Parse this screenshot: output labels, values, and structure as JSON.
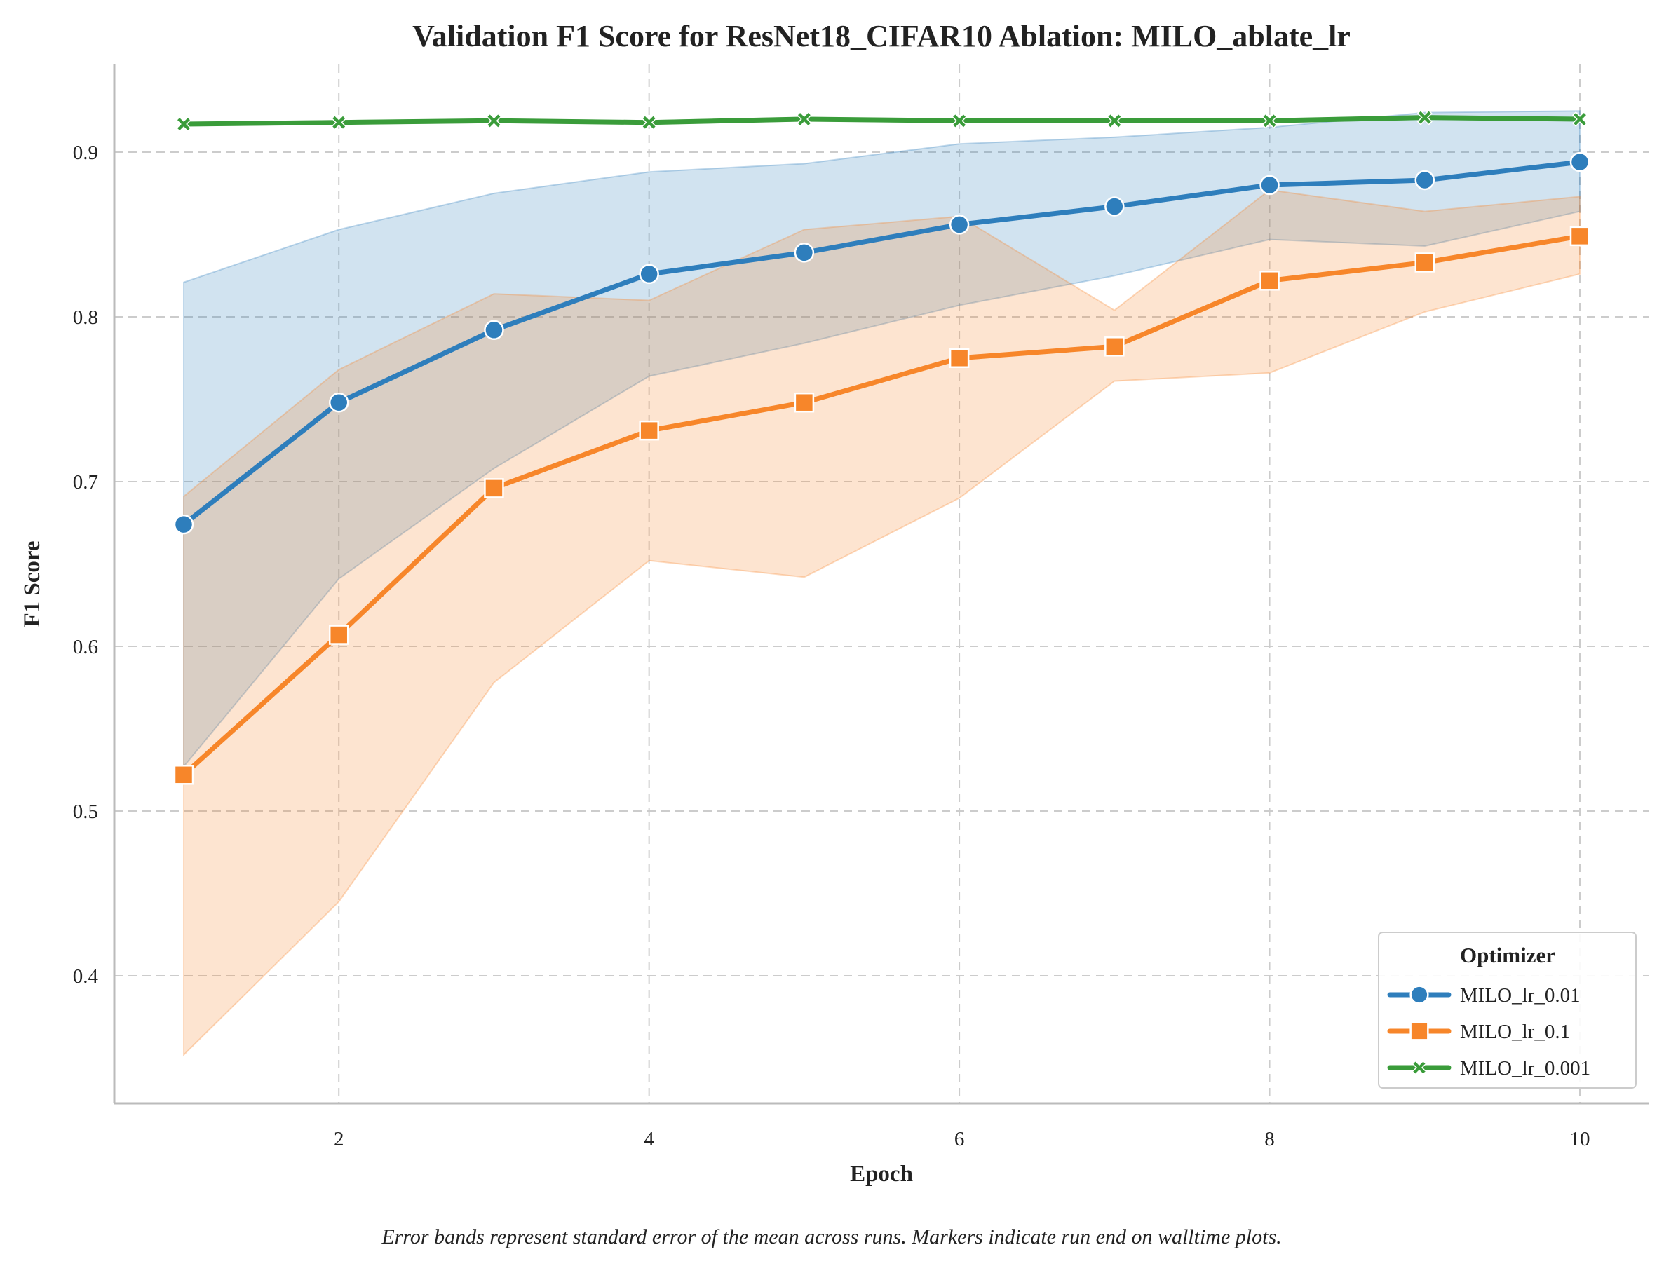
{
  "chart_data": {
    "type": "line",
    "title": "Validation F1 Score for ResNet18_CIFAR10 Ablation: MILO_ablate_lr",
    "xlabel": "Epoch",
    "ylabel": "F1 Score",
    "xlim": [
      0.5,
      10.45
    ],
    "ylim": [
      0.325,
      0.955
    ],
    "x_ticks": [
      2,
      4,
      6,
      8,
      10
    ],
    "y_ticks": [
      0.4,
      0.5,
      0.6,
      0.7,
      0.8,
      0.9
    ],
    "x_tick_labels": [
      "2",
      "4",
      "6",
      "8",
      "10"
    ],
    "y_tick_labels": [
      "0.4",
      "0.5",
      "0.6",
      "0.7",
      "0.8",
      "0.9"
    ],
    "grid": true,
    "legend": {
      "title": "Optimizer",
      "placement": "bottom-right"
    },
    "caption": "Error bands represent standard error of the mean across runs. Markers indicate run end on walltime plots.",
    "x": [
      1,
      2,
      3,
      4,
      5,
      6,
      7,
      8,
      9,
      10
    ],
    "series": [
      {
        "name": "MILO_lr_0.01",
        "color": "#2e7ebc",
        "marker": "circle",
        "values": [
          0.674,
          0.748,
          0.792,
          0.826,
          0.839,
          0.856,
          0.867,
          0.88,
          0.883,
          0.894
        ],
        "lower": [
          0.527,
          0.641,
          0.708,
          0.764,
          0.784,
          0.807,
          0.825,
          0.847,
          0.843,
          0.864
        ],
        "upper": [
          0.821,
          0.853,
          0.875,
          0.888,
          0.893,
          0.905,
          0.909,
          0.915,
          0.924,
          0.925
        ]
      },
      {
        "name": "MILO_lr_0.1",
        "color": "#f7862a",
        "marker": "square",
        "values": [
          0.522,
          0.607,
          0.696,
          0.731,
          0.748,
          0.775,
          0.782,
          0.822,
          0.833,
          0.849
        ],
        "lower": [
          0.352,
          0.445,
          0.578,
          0.652,
          0.642,
          0.69,
          0.761,
          0.766,
          0.803,
          0.826
        ],
        "upper": [
          0.691,
          0.768,
          0.814,
          0.81,
          0.853,
          0.861,
          0.804,
          0.877,
          0.864,
          0.873
        ]
      },
      {
        "name": "MILO_lr_0.001",
        "color": "#3a9c3a",
        "marker": "x",
        "values": [
          0.917,
          0.918,
          0.919,
          0.918,
          0.92,
          0.919,
          0.919,
          0.919,
          0.921,
          0.92
        ],
        "lower": [
          0.916,
          0.917,
          0.918,
          0.917,
          0.919,
          0.918,
          0.918,
          0.918,
          0.92,
          0.919
        ],
        "upper": [
          0.918,
          0.919,
          0.92,
          0.919,
          0.921,
          0.92,
          0.92,
          0.92,
          0.922,
          0.921
        ]
      }
    ]
  }
}
